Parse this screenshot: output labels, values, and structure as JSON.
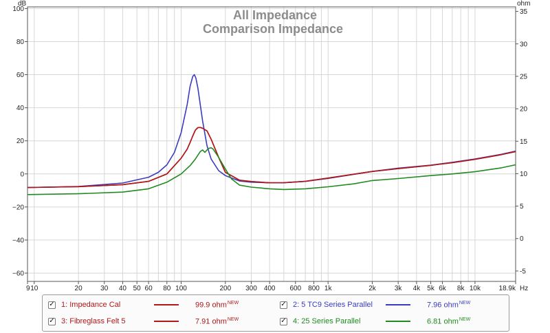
{
  "chart_data": {
    "type": "line",
    "title": "All Impedance",
    "subtitle": "Comparison Impedance",
    "left_axis": {
      "unit": "dB",
      "range": [
        -65,
        101
      ],
      "ticks": [
        {
          "value": 100,
          "label": "100"
        },
        {
          "value": 80,
          "label": "80"
        },
        {
          "value": 60,
          "label": "60"
        },
        {
          "value": 40,
          "label": "40"
        },
        {
          "value": 20,
          "label": "20"
        },
        {
          "value": 0,
          "label": "0"
        },
        {
          "value": -20,
          "label": "−20"
        },
        {
          "value": -40,
          "label": "−40"
        },
        {
          "value": -60,
          "label": "−60"
        }
      ]
    },
    "right_axis": {
      "unit": "ohm",
      "range": [
        -6.6,
        35.7
      ],
      "ticks": [
        {
          "value": 35,
          "label": "35"
        },
        {
          "value": 30,
          "label": "30"
        },
        {
          "value": 25,
          "label": "25"
        },
        {
          "value": 20,
          "label": "20"
        },
        {
          "value": 15,
          "label": "15"
        },
        {
          "value": 10,
          "label": "10"
        },
        {
          "value": 5,
          "label": "5"
        },
        {
          "value": 0,
          "label": "0"
        },
        {
          "value": -5,
          "label": "-5"
        }
      ]
    },
    "x_axis": {
      "scale": "log",
      "unit": "Hz",
      "range": [
        9,
        18900
      ],
      "ticks": [
        {
          "value": 9,
          "label": "9"
        },
        {
          "value": 10,
          "label": "10"
        },
        {
          "value": 20,
          "label": "20"
        },
        {
          "value": 30,
          "label": "30"
        },
        {
          "value": 40,
          "label": "40"
        },
        {
          "value": 50,
          "label": "50"
        },
        {
          "value": 60,
          "label": "60"
        },
        {
          "value": 80,
          "label": "80"
        },
        {
          "value": 100,
          "label": "100"
        },
        {
          "value": 200,
          "label": "200"
        },
        {
          "value": 300,
          "label": "300"
        },
        {
          "value": 400,
          "label": "400"
        },
        {
          "value": 600,
          "label": "600"
        },
        {
          "value": 800,
          "label": "800"
        },
        {
          "value": 1000,
          "label": "1k"
        },
        {
          "value": 2000,
          "label": "2k"
        },
        {
          "value": 3000,
          "label": "3k"
        },
        {
          "value": 4000,
          "label": "4k"
        },
        {
          "value": 5000,
          "label": "5k"
        },
        {
          "value": 6000,
          "label": "6k"
        },
        {
          "value": 8000,
          "label": "8k"
        },
        {
          "value": 10000,
          "label": "10k"
        },
        {
          "value": 18900,
          "label": "18.9k"
        }
      ],
      "minor_grid": [
        9,
        10,
        20,
        30,
        40,
        50,
        60,
        70,
        80,
        90,
        100,
        200,
        300,
        400,
        500,
        600,
        700,
        800,
        900,
        1000,
        2000,
        3000,
        4000,
        5000,
        6000,
        7000,
        8000,
        9000,
        10000
      ]
    },
    "grid": true,
    "series": [
      {
        "name": "1: Impedance Cal",
        "color": "#b01818",
        "points": [
          [
            9,
            -8.2
          ],
          [
            20,
            -7.7
          ],
          [
            40,
            -6.5
          ],
          [
            60,
            -4.5
          ],
          [
            80,
            0
          ],
          [
            100,
            9.5
          ],
          [
            110,
            15
          ],
          [
            115,
            19
          ],
          [
            120,
            23
          ],
          [
            125,
            26.5
          ],
          [
            130,
            28
          ],
          [
            135,
            28.1
          ],
          [
            140,
            27.6
          ],
          [
            150,
            26
          ],
          [
            160,
            21
          ],
          [
            180,
            10
          ],
          [
            200,
            1
          ],
          [
            250,
            -3.8
          ],
          [
            300,
            -4.6
          ],
          [
            400,
            -5.4
          ],
          [
            500,
            -5.3
          ],
          [
            700,
            -4.5
          ],
          [
            1000,
            -2.5
          ],
          [
            2000,
            1.5
          ],
          [
            3000,
            3.2
          ],
          [
            5000,
            5.2
          ],
          [
            7000,
            6.8
          ],
          [
            10000,
            8.8
          ],
          [
            15000,
            11.6
          ],
          [
            18900,
            13.5
          ]
        ]
      },
      {
        "name": "2: 5 TC9 Series Parallel",
        "color": "#3b3bbf",
        "points": [
          [
            9,
            -8.3
          ],
          [
            20,
            -7.6
          ],
          [
            40,
            -5.5
          ],
          [
            60,
            -2
          ],
          [
            70,
            1
          ],
          [
            80,
            5.5
          ],
          [
            90,
            13
          ],
          [
            100,
            25
          ],
          [
            110,
            42
          ],
          [
            115,
            53
          ],
          [
            120,
            59
          ],
          [
            123,
            60
          ],
          [
            126,
            58
          ],
          [
            130,
            52
          ],
          [
            140,
            32
          ],
          [
            150,
            17
          ],
          [
            160,
            9
          ],
          [
            180,
            2
          ],
          [
            200,
            -1
          ],
          [
            250,
            -4.3
          ],
          [
            300,
            -5
          ],
          [
            400,
            -5.4
          ],
          [
            500,
            -5.4
          ],
          [
            700,
            -4.5
          ],
          [
            1000,
            -2.7
          ],
          [
            2000,
            1.5
          ],
          [
            3000,
            3.5
          ],
          [
            5000,
            5.3
          ],
          [
            7000,
            7
          ],
          [
            10000,
            9
          ],
          [
            15000,
            11.8
          ],
          [
            18900,
            13.8
          ]
        ]
      },
      {
        "name": "3: Fibreglass Felt 5",
        "color": "#b01818",
        "points": [
          [
            9,
            -8.2
          ],
          [
            20,
            -7.7
          ],
          [
            40,
            -6.5
          ],
          [
            60,
            -4.5
          ],
          [
            80,
            0
          ],
          [
            100,
            9.5
          ],
          [
            110,
            15
          ],
          [
            115,
            19
          ],
          [
            120,
            23
          ],
          [
            125,
            26.5
          ],
          [
            130,
            28
          ],
          [
            135,
            28.1
          ],
          [
            140,
            27.6
          ],
          [
            150,
            26
          ],
          [
            160,
            21
          ],
          [
            180,
            10
          ],
          [
            200,
            1
          ],
          [
            250,
            -3.8
          ],
          [
            300,
            -4.6
          ],
          [
            400,
            -5.4
          ],
          [
            500,
            -5.3
          ],
          [
            700,
            -4.5
          ],
          [
            1000,
            -2.5
          ],
          [
            2000,
            1.5
          ],
          [
            3000,
            3.2
          ],
          [
            5000,
            5.2
          ],
          [
            7000,
            6.8
          ],
          [
            10000,
            8.8
          ],
          [
            15000,
            11.6
          ],
          [
            18900,
            13.5
          ]
        ]
      },
      {
        "name": "4: 25 Series Parallel",
        "color": "#1f8a1f",
        "points": [
          [
            9,
            -12.5
          ],
          [
            20,
            -12
          ],
          [
            40,
            -11
          ],
          [
            60,
            -9
          ],
          [
            80,
            -5
          ],
          [
            100,
            0
          ],
          [
            115,
            5
          ],
          [
            125,
            9
          ],
          [
            135,
            13.5
          ],
          [
            140,
            14.5
          ],
          [
            145,
            13
          ],
          [
            150,
            14.5
          ],
          [
            155,
            15.5
          ],
          [
            160,
            15.8
          ],
          [
            165,
            15
          ],
          [
            180,
            10
          ],
          [
            200,
            3
          ],
          [
            220,
            -3
          ],
          [
            250,
            -6.8
          ],
          [
            300,
            -8
          ],
          [
            400,
            -9
          ],
          [
            500,
            -9.4
          ],
          [
            700,
            -9
          ],
          [
            1000,
            -7.8
          ],
          [
            1500,
            -6
          ],
          [
            2000,
            -4
          ],
          [
            3000,
            -2.8
          ],
          [
            5000,
            -1
          ],
          [
            7000,
            0
          ],
          [
            10000,
            1.3
          ],
          [
            15000,
            3.6
          ],
          [
            18900,
            5.5
          ]
        ]
      }
    ]
  },
  "legend": {
    "new_tag": "NEW",
    "items": [
      {
        "label": "1: Impedance Cal",
        "value": "99.9 ohm",
        "checked": "✓",
        "color": "#b01818"
      },
      {
        "label": "2: 5 TC9 Series Parallel",
        "value": "7.96 ohm",
        "checked": "✓",
        "color": "#3b3bbf"
      },
      {
        "label": "3: Fibreglass Felt 5",
        "value": "7.91 ohm",
        "checked": "✓",
        "color": "#b01818"
      },
      {
        "label": "4: 25 Series Parallel",
        "value": "6.81 ohm",
        "checked": "✓",
        "color": "#1f8a1f"
      }
    ]
  }
}
